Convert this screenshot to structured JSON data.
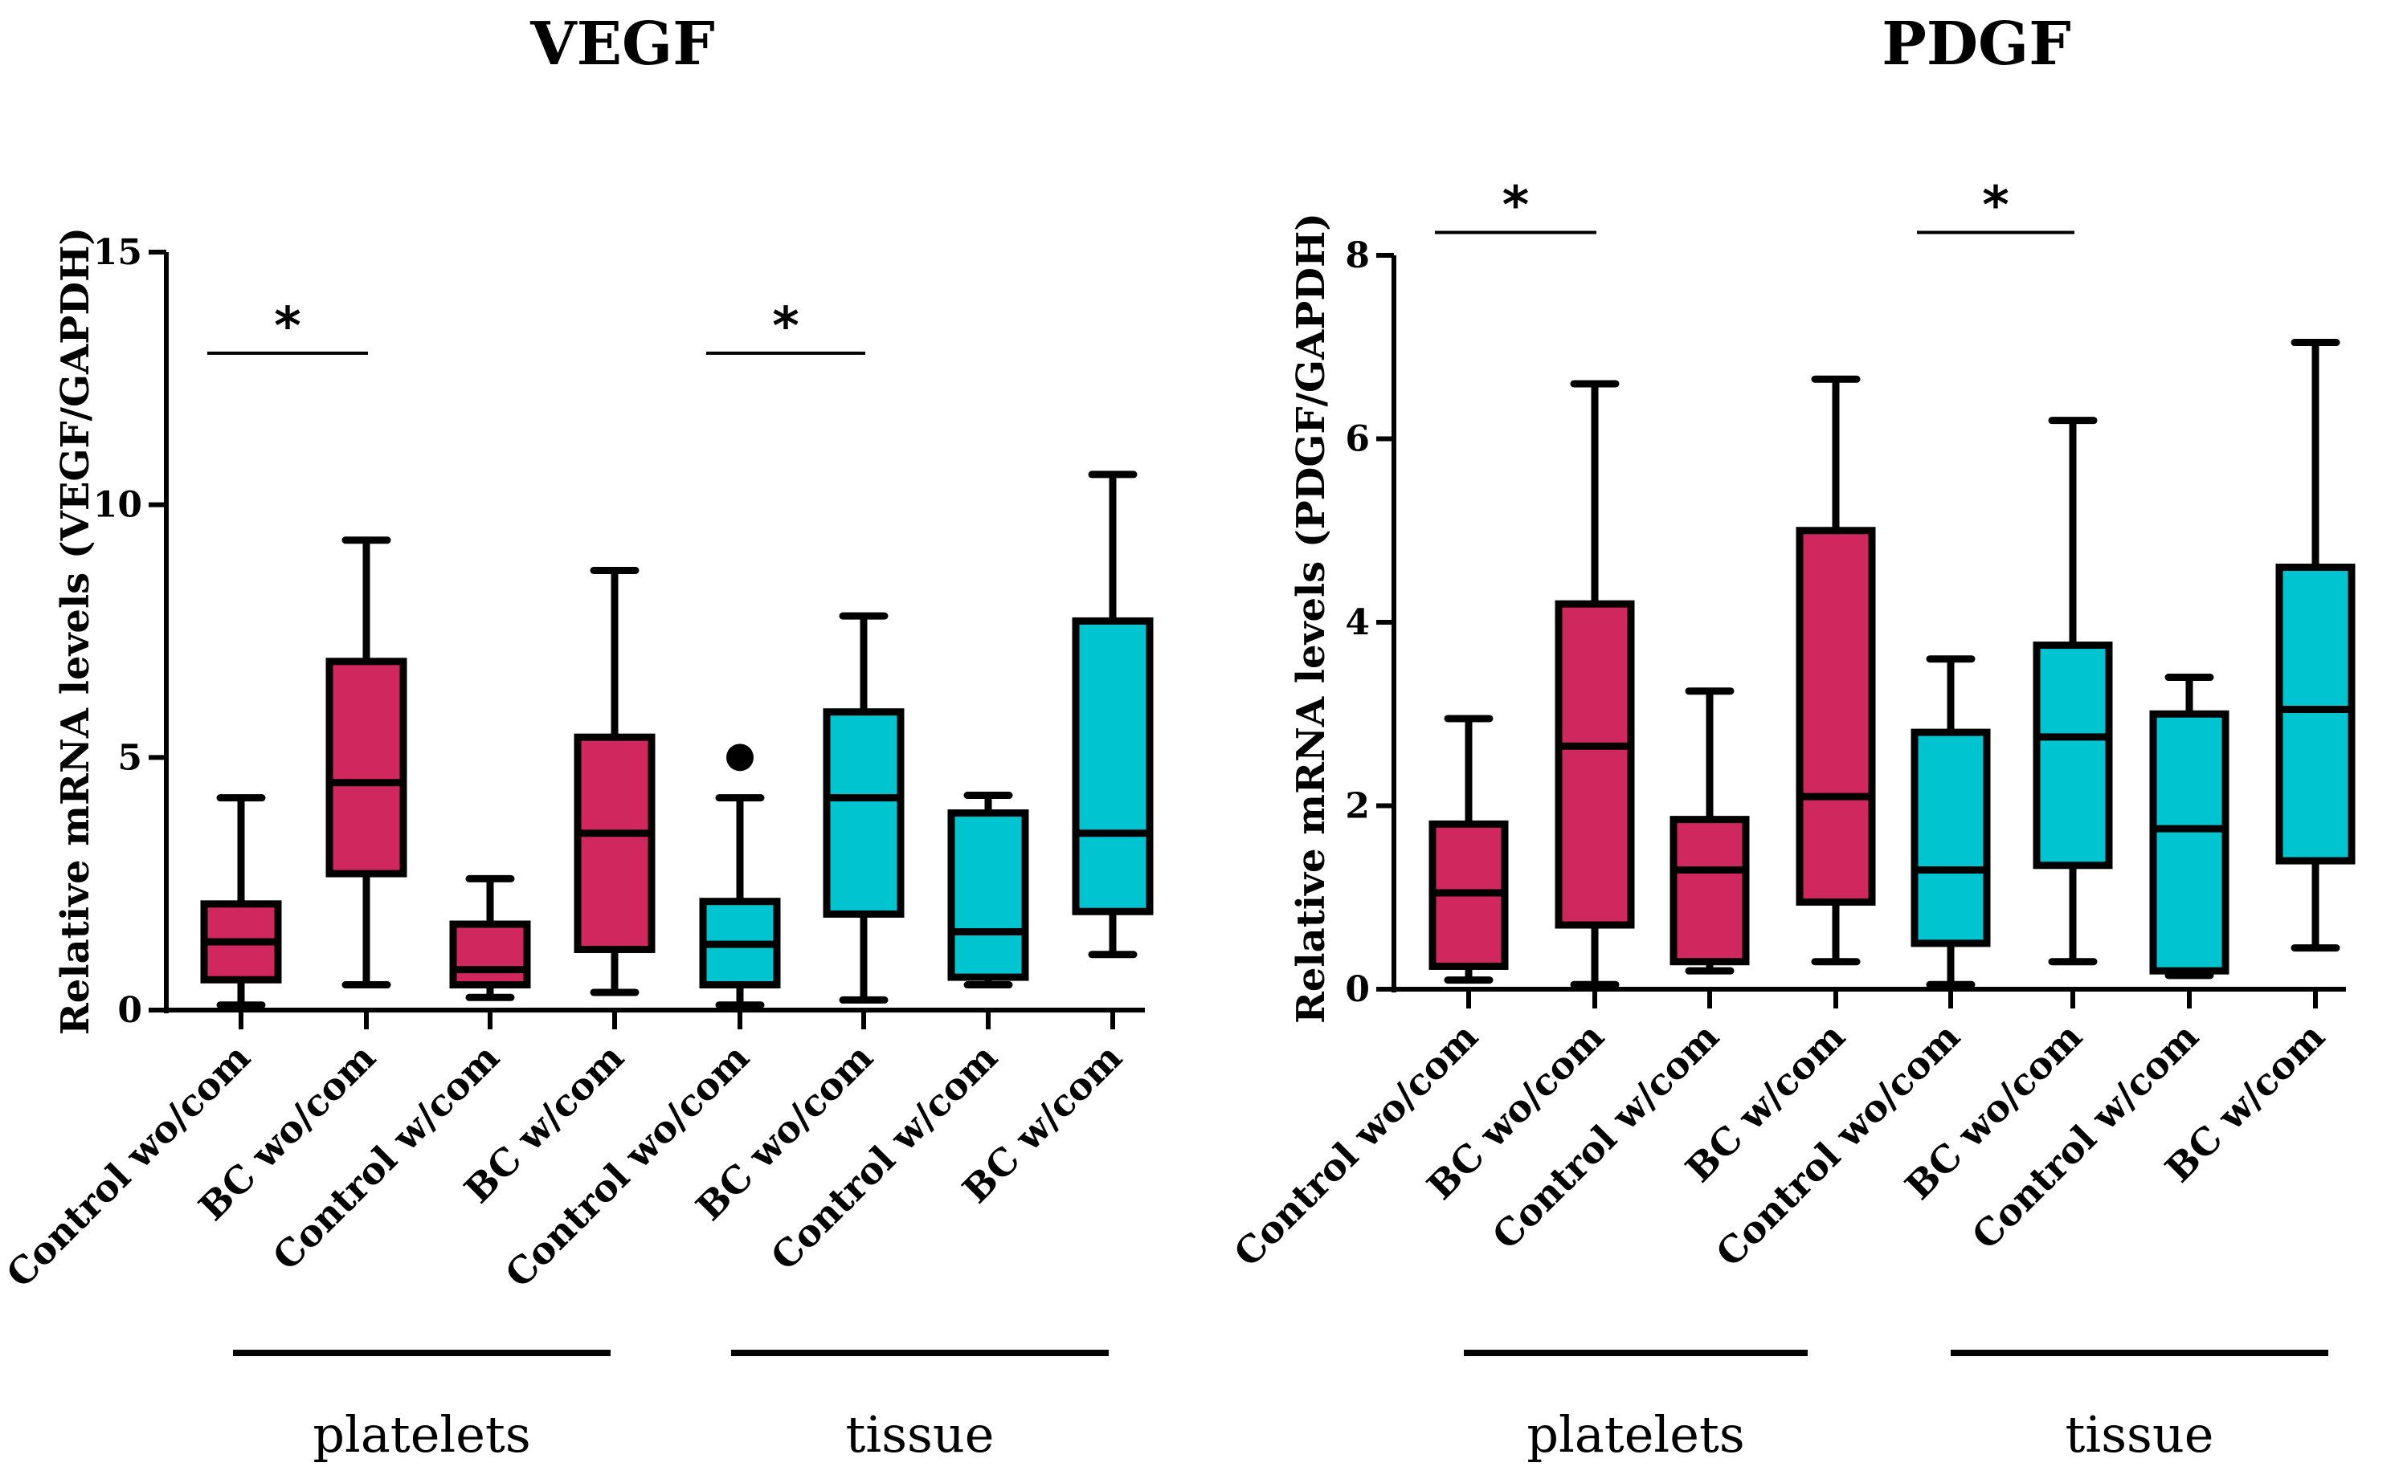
{
  "colors": {
    "platelets": "#d1275f",
    "tissue": "#00c4cf",
    "line": "#000000"
  },
  "chart_data": [
    {
      "type": "box",
      "title": "VEGF",
      "ylabel": "Relative mRNA levels (VEGF/GAPDH)",
      "ylim": [
        0,
        15
      ],
      "yticks": [
        0,
        5,
        10,
        15
      ],
      "categories": [
        "Control wo/com",
        "BC wo/com",
        "Control w/com",
        "BC w/com",
        "Control wo/com",
        "BC wo/com",
        "Control w/com",
        "BC w/com"
      ],
      "groups": [
        {
          "label": "platelets",
          "categories": [
            0,
            1,
            2,
            3
          ]
        },
        {
          "label": "tissue",
          "categories": [
            4,
            5,
            6,
            7
          ]
        }
      ],
      "boxes": [
        {
          "group": "platelets",
          "min": 0.1,
          "q1": 0.6,
          "median": 1.35,
          "q3": 2.1,
          "max": 4.2
        },
        {
          "group": "platelets",
          "min": 0.5,
          "q1": 2.7,
          "median": 4.5,
          "q3": 6.9,
          "max": 9.3
        },
        {
          "group": "platelets",
          "min": 0.25,
          "q1": 0.5,
          "median": 0.8,
          "q3": 1.7,
          "max": 2.6
        },
        {
          "group": "platelets",
          "min": 0.35,
          "q1": 1.2,
          "median": 3.5,
          "q3": 5.4,
          "max": 8.7
        },
        {
          "group": "tissue",
          "min": 0.1,
          "q1": 0.5,
          "median": 1.3,
          "q3": 2.15,
          "max": 4.2,
          "outliers": [
            5.0
          ]
        },
        {
          "group": "tissue",
          "min": 0.2,
          "q1": 1.9,
          "median": 4.2,
          "q3": 5.9,
          "max": 7.8
        },
        {
          "group": "tissue",
          "min": 0.5,
          "q1": 0.65,
          "median": 1.55,
          "q3": 3.9,
          "max": 4.25
        },
        {
          "group": "tissue",
          "min": 1.1,
          "q1": 1.95,
          "median": 3.5,
          "q3": 7.7,
          "max": 10.6
        }
      ],
      "significance": [
        {
          "from": 0,
          "to": 1,
          "y": 13.0,
          "label": "*"
        },
        {
          "from": 4,
          "to": 5,
          "y": 13.0,
          "label": "*"
        }
      ]
    },
    {
      "type": "box",
      "title": "PDGF",
      "ylabel": "Relative mRNA levels (PDGF/GAPDH)",
      "ylim": [
        0,
        8
      ],
      "yticks": [
        0,
        2,
        4,
        6,
        8
      ],
      "categories": [
        "Control wo/com",
        "BC wo/com",
        "Control w/com",
        "BC w/com",
        "Control wo/com",
        "BC wo/com",
        "Control w/com",
        "BC w/com"
      ],
      "groups": [
        {
          "label": "platelets",
          "categories": [
            0,
            1,
            2,
            3
          ]
        },
        {
          "label": "tissue",
          "categories": [
            4,
            5,
            6,
            7
          ]
        }
      ],
      "boxes": [
        {
          "group": "platelets",
          "min": 0.1,
          "q1": 0.25,
          "median": 1.05,
          "q3": 1.8,
          "max": 2.95
        },
        {
          "group": "platelets",
          "min": 0.05,
          "q1": 0.7,
          "median": 2.65,
          "q3": 4.2,
          "max": 6.6
        },
        {
          "group": "platelets",
          "min": 0.2,
          "q1": 0.3,
          "median": 1.3,
          "q3": 1.85,
          "max": 3.25
        },
        {
          "group": "platelets",
          "min": 0.3,
          "q1": 0.95,
          "median": 2.1,
          "q3": 5.0,
          "max": 6.65
        },
        {
          "group": "tissue",
          "min": 0.05,
          "q1": 0.5,
          "median": 1.3,
          "q3": 2.8,
          "max": 3.6
        },
        {
          "group": "tissue",
          "min": 0.3,
          "q1": 1.35,
          "median": 2.75,
          "q3": 3.75,
          "max": 6.2
        },
        {
          "group": "tissue",
          "min": 0.15,
          "q1": 0.2,
          "median": 1.75,
          "q3": 3.0,
          "max": 3.4
        },
        {
          "group": "tissue",
          "min": 0.45,
          "q1": 1.4,
          "median": 3.05,
          "q3": 4.6,
          "max": 7.05
        }
      ],
      "significance": [
        {
          "from": 0,
          "to": 1,
          "y": 8.25,
          "label": "*"
        },
        {
          "from": 4,
          "to": 5,
          "y": 8.25,
          "label": "*"
        }
      ]
    }
  ]
}
